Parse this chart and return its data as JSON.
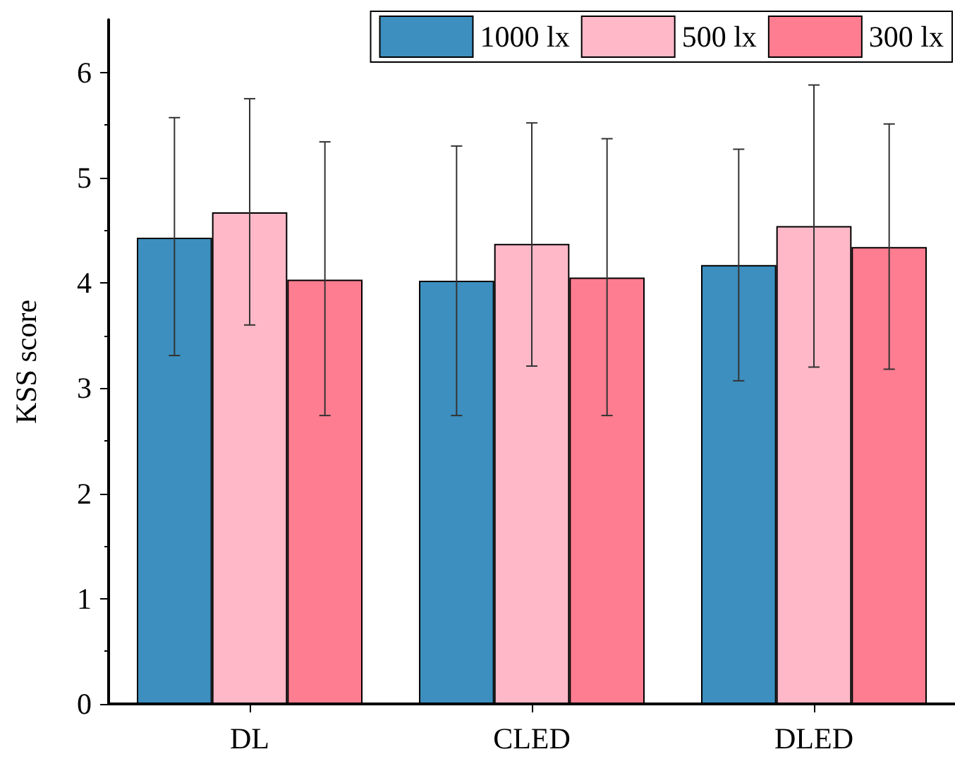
{
  "chart_data": {
    "type": "bar",
    "ylabel": "KSS score",
    "categories": [
      "DL",
      "CLED",
      "DLED"
    ],
    "series": [
      {
        "name": "1000 lx",
        "color": "#3d8fbf",
        "values": [
          4.43,
          4.02,
          4.17
        ],
        "errors": [
          [
            3.31,
            5.57
          ],
          [
            2.74,
            5.3
          ],
          [
            3.07,
            5.27
          ]
        ]
      },
      {
        "name": "500 lx",
        "color": "#ffb8c8",
        "values": [
          4.67,
          4.37,
          4.54
        ],
        "errors": [
          [
            3.6,
            5.75
          ],
          [
            3.21,
            5.52
          ],
          [
            3.2,
            5.88
          ]
        ]
      },
      {
        "name": "300 lx",
        "color": "#ff7d90",
        "values": [
          4.03,
          4.05,
          4.34
        ],
        "errors": [
          [
            2.74,
            5.34
          ],
          [
            2.74,
            5.37
          ],
          [
            3.18,
            5.51
          ]
        ]
      }
    ],
    "ylim": [
      0,
      6.5
    ],
    "yticks": [
      0,
      1,
      2,
      3,
      4,
      5,
      6
    ],
    "grid": false,
    "legend": "top right"
  }
}
